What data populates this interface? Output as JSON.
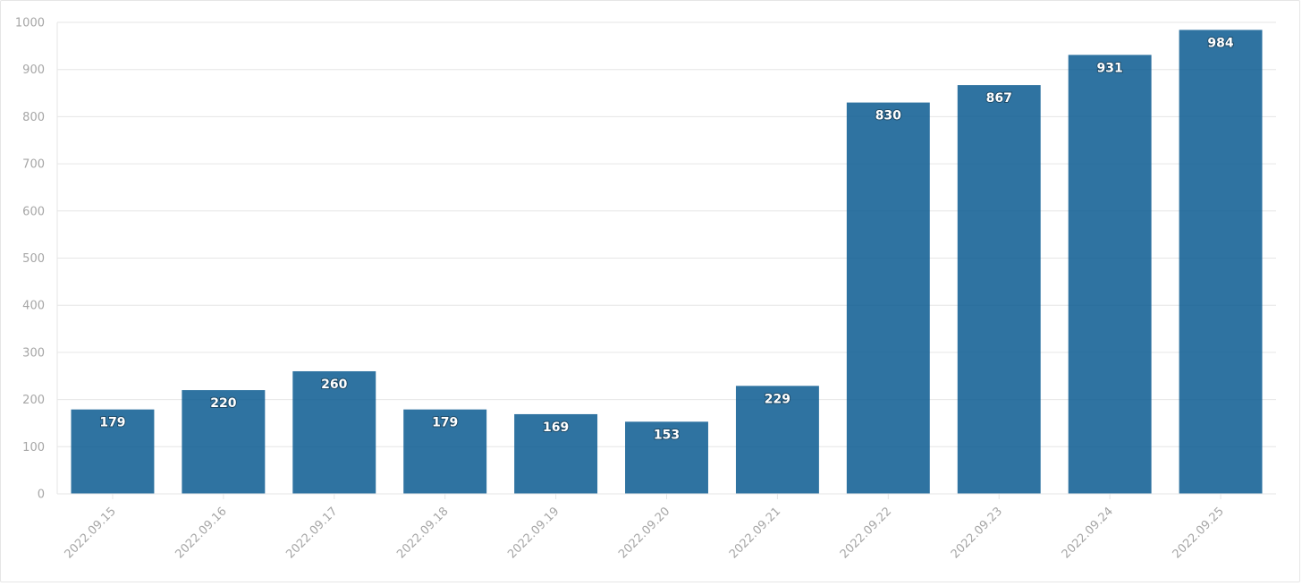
{
  "colors": {
    "bar": "#0b5a91"
  },
  "chart_data": {
    "type": "bar",
    "title": "",
    "xlabel": "",
    "ylabel": "",
    "categories": [
      "2022.09.15",
      "2022.09.16",
      "2022.09.17",
      "2022.09.18",
      "2022.09.19",
      "2022.09.20",
      "2022.09.21",
      "2022.09.22",
      "2022.09.23",
      "2022.09.24",
      "2022.09.25"
    ],
    "values": [
      179,
      220,
      260,
      179,
      169,
      153,
      229,
      830,
      867,
      931,
      984
    ],
    "ylim": [
      0,
      1000
    ],
    "yticks": [
      0,
      100,
      200,
      300,
      400,
      500,
      600,
      700,
      800,
      900,
      1000
    ],
    "grid": true,
    "legend": "none",
    "data_labels": true
  }
}
